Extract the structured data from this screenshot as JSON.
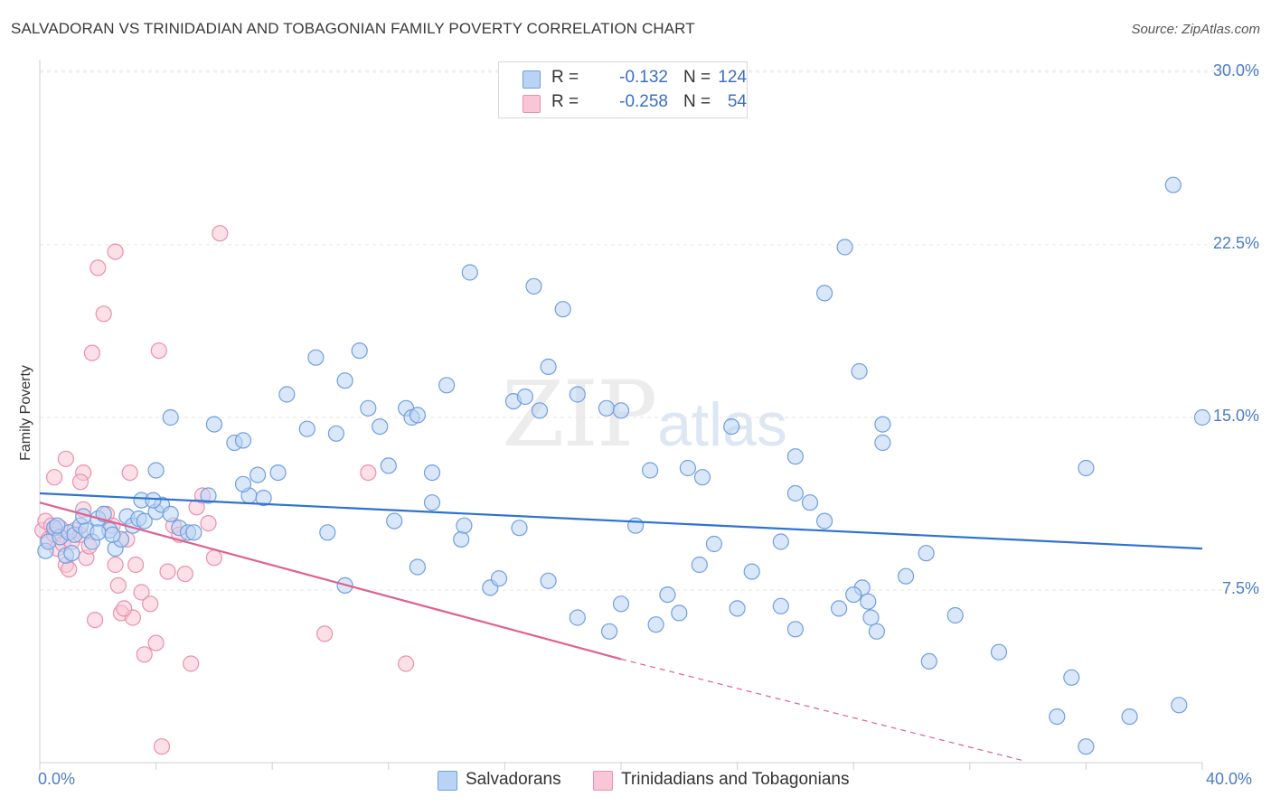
{
  "header": {
    "title": "SALVADORAN VS TRINIDADIAN AND TOBAGONIAN FAMILY POVERTY CORRELATION CHART",
    "source": "Source: ZipAtlas.com"
  },
  "watermark": {
    "zip": "ZIP",
    "atlas": "atlas"
  },
  "legend": {
    "r_label": "R =",
    "n_label": "N =",
    "rows": [
      {
        "r": "-0.132",
        "n": "124",
        "fill": "#b9d3f4",
        "stroke": "#6f9fe0"
      },
      {
        "r": "-0.258",
        "n": "54",
        "fill": "#f8c6d6",
        "stroke": "#ec8fad"
      }
    ]
  },
  "colors": {
    "blue_fill": "#b9d3f4",
    "blue_stroke": "#6f9fe0",
    "blue_line": "#2e72d2",
    "pink_fill": "#f8c6d6",
    "pink_stroke": "#ec8fad",
    "pink_line": "#e0608e",
    "tick_text": "#4a7cc7",
    "grid": "#e6e6e6"
  },
  "chart_data": {
    "type": "scatter",
    "title": "SALVADORAN VS TRINIDADIAN AND TOBAGONIAN FAMILY POVERTY CORRELATION CHART",
    "xlabel": "",
    "ylabel": "Family Poverty",
    "xlim": [
      0,
      40
    ],
    "ylim": [
      0,
      30.5
    ],
    "x_tick_labels": [
      "0.0%",
      "40.0%"
    ],
    "y_ticks": [
      7.5,
      15.0,
      22.5,
      30.0
    ],
    "y_tick_labels": [
      "7.5%",
      "15.0%",
      "22.5%",
      "30.0%"
    ],
    "grid": true,
    "legend_position": "bottom-center",
    "series": [
      {
        "name": "Salvadorans",
        "r": -0.132,
        "n": 124,
        "trend": {
          "x": [
            0,
            40
          ],
          "y": [
            11.7,
            9.3
          ]
        },
        "points": [
          [
            0.2,
            9.2
          ],
          [
            0.3,
            9.6
          ],
          [
            0.5,
            10.2
          ],
          [
            0.7,
            9.8
          ],
          [
            0.9,
            9.0
          ],
          [
            1.0,
            10.0
          ],
          [
            1.2,
            9.9
          ],
          [
            1.4,
            10.3
          ],
          [
            1.6,
            10.1
          ],
          [
            1.8,
            9.6
          ],
          [
            2.0,
            10.6
          ],
          [
            2.2,
            10.8
          ],
          [
            2.4,
            10.1
          ],
          [
            2.6,
            9.3
          ],
          [
            2.8,
            9.7
          ],
          [
            3.0,
            10.7
          ],
          [
            3.2,
            10.3
          ],
          [
            3.4,
            10.6
          ],
          [
            0.6,
            10.3
          ],
          [
            1.1,
            9.1
          ],
          [
            1.5,
            10.7
          ],
          [
            2.5,
            9.9
          ],
          [
            3.5,
            11.4
          ],
          [
            3.6,
            10.5
          ],
          [
            4.0,
            10.9
          ],
          [
            4.2,
            11.2
          ],
          [
            4.5,
            10.8
          ],
          [
            4.8,
            10.2
          ],
          [
            5.1,
            10.0
          ],
          [
            5.3,
            10.0
          ],
          [
            2.0,
            10.0
          ],
          [
            3.9,
            11.4
          ],
          [
            5.8,
            11.6
          ],
          [
            7.2,
            11.6
          ],
          [
            7.0,
            12.1
          ],
          [
            7.7,
            11.5
          ],
          [
            9.9,
            10.0
          ],
          [
            10.5,
            7.7
          ],
          [
            12.2,
            10.5
          ],
          [
            13.5,
            11.3
          ],
          [
            13.0,
            8.5
          ],
          [
            14.5,
            9.7
          ],
          [
            14.6,
            10.3
          ],
          [
            15.5,
            7.6
          ],
          [
            15.8,
            8.0
          ],
          [
            16.5,
            10.2
          ],
          [
            17.5,
            7.9
          ],
          [
            18.5,
            6.3
          ],
          [
            19.6,
            5.7
          ],
          [
            20.0,
            6.9
          ],
          [
            20.5,
            10.3
          ],
          [
            21.2,
            6.0
          ],
          [
            21.6,
            7.3
          ],
          [
            22.0,
            6.5
          ],
          [
            22.7,
            8.6
          ],
          [
            23.2,
            9.5
          ],
          [
            24.0,
            6.7
          ],
          [
            24.5,
            8.3
          ],
          [
            25.5,
            6.8
          ],
          [
            26.0,
            5.8
          ],
          [
            26.0,
            13.3
          ],
          [
            22.3,
            12.8
          ],
          [
            22.8,
            12.4
          ],
          [
            21.0,
            12.7
          ],
          [
            23.8,
            14.6
          ],
          [
            25.5,
            9.6
          ],
          [
            28.3,
            7.6
          ],
          [
            28.5,
            7.0
          ],
          [
            27.5,
            6.7
          ],
          [
            28.0,
            7.3
          ],
          [
            28.6,
            6.3
          ],
          [
            28.8,
            5.7
          ],
          [
            29.0,
            14.7
          ],
          [
            29.8,
            8.1
          ],
          [
            30.5,
            9.1
          ],
          [
            30.6,
            4.4
          ],
          [
            31.5,
            6.4
          ],
          [
            33.0,
            4.8
          ],
          [
            35.0,
            2.0
          ],
          [
            35.5,
            3.7
          ],
          [
            36.0,
            12.8
          ],
          [
            36.0,
            0.7
          ],
          [
            37.5,
            2.0
          ],
          [
            39.2,
            2.5
          ],
          [
            39.0,
            25.1
          ],
          [
            40.0,
            15.0
          ],
          [
            27.0,
            20.4
          ],
          [
            27.7,
            22.4
          ],
          [
            28.2,
            17.0
          ],
          [
            29.0,
            13.9
          ],
          [
            26.5,
            11.3
          ],
          [
            26.0,
            11.7
          ],
          [
            27.0,
            10.5
          ],
          [
            18.5,
            16.0
          ],
          [
            17.5,
            17.2
          ],
          [
            16.3,
            15.7
          ],
          [
            16.7,
            15.9
          ],
          [
            17.2,
            15.3
          ],
          [
            19.5,
            15.4
          ],
          [
            20.0,
            15.3
          ],
          [
            18.0,
            19.7
          ],
          [
            17.0,
            20.7
          ],
          [
            14.8,
            21.3
          ],
          [
            14.0,
            16.4
          ],
          [
            11.0,
            17.9
          ],
          [
            10.5,
            16.6
          ],
          [
            9.2,
            14.5
          ],
          [
            12.6,
            15.4
          ],
          [
            12.8,
            15.0
          ],
          [
            13.0,
            15.1
          ],
          [
            12.0,
            12.9
          ],
          [
            13.5,
            12.6
          ],
          [
            11.3,
            15.4
          ],
          [
            11.7,
            14.6
          ],
          [
            10.2,
            14.3
          ],
          [
            9.5,
            17.6
          ],
          [
            8.5,
            16.0
          ],
          [
            8.2,
            12.6
          ],
          [
            7.5,
            12.5
          ],
          [
            6.0,
            14.7
          ],
          [
            6.7,
            13.9
          ],
          [
            7.0,
            14.0
          ],
          [
            4.5,
            15.0
          ],
          [
            4.0,
            12.7
          ]
        ]
      },
      {
        "name": "Trinidadians and Tobagonians",
        "r": -0.258,
        "n": 54,
        "trend": {
          "x": [
            0,
            20
          ],
          "y": [
            11.3,
            4.5
          ]
        },
        "trend_dashed": {
          "x": [
            20,
            33.8
          ],
          "y": [
            4.5,
            0.1
          ]
        },
        "points": [
          [
            0.1,
            10.1
          ],
          [
            0.2,
            10.5
          ],
          [
            0.3,
            9.7
          ],
          [
            0.4,
            10.3
          ],
          [
            0.5,
            9.9
          ],
          [
            0.6,
            9.3
          ],
          [
            0.7,
            10.2
          ],
          [
            0.8,
            9.5
          ],
          [
            0.9,
            8.6
          ],
          [
            1.0,
            8.4
          ],
          [
            1.1,
            9.6
          ],
          [
            1.2,
            10.1
          ],
          [
            1.4,
            9.9
          ],
          [
            1.5,
            11.0
          ],
          [
            1.6,
            8.9
          ],
          [
            1.7,
            9.4
          ],
          [
            0.5,
            12.4
          ],
          [
            0.9,
            13.2
          ],
          [
            1.5,
            12.6
          ],
          [
            1.4,
            12.2
          ],
          [
            2.3,
            10.8
          ],
          [
            2.5,
            10.3
          ],
          [
            2.6,
            8.6
          ],
          [
            2.7,
            7.7
          ],
          [
            2.8,
            6.5
          ],
          [
            3.0,
            9.7
          ],
          [
            3.2,
            6.3
          ],
          [
            3.3,
            8.6
          ],
          [
            3.5,
            7.4
          ],
          [
            3.6,
            4.7
          ],
          [
            3.8,
            6.9
          ],
          [
            4.0,
            5.2
          ],
          [
            4.2,
            0.7
          ],
          [
            4.4,
            8.3
          ],
          [
            4.6,
            10.3
          ],
          [
            4.8,
            9.9
          ],
          [
            5.0,
            8.2
          ],
          [
            5.2,
            4.3
          ],
          [
            5.4,
            11.1
          ],
          [
            5.6,
            11.6
          ],
          [
            5.8,
            10.4
          ],
          [
            6.0,
            8.9
          ],
          [
            3.1,
            12.6
          ],
          [
            2.0,
            21.5
          ],
          [
            2.6,
            22.2
          ],
          [
            6.2,
            23.0
          ],
          [
            2.2,
            19.5
          ],
          [
            1.8,
            17.8
          ],
          [
            4.1,
            17.9
          ],
          [
            1.9,
            6.2
          ],
          [
            2.9,
            6.7
          ],
          [
            9.8,
            5.6
          ],
          [
            11.3,
            12.6
          ],
          [
            12.6,
            4.3
          ]
        ]
      }
    ]
  }
}
